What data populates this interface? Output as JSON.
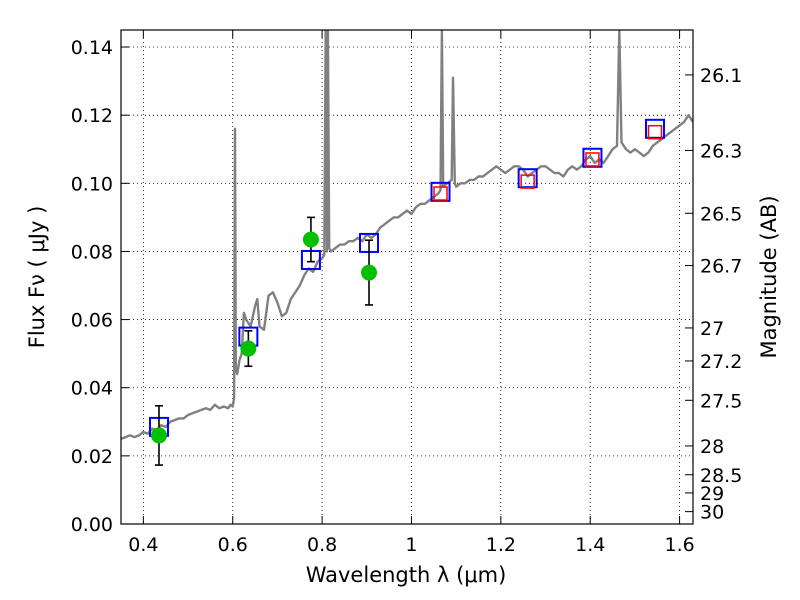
{
  "chart_data": {
    "type": "scatter",
    "xlabel": "Wavelength  λ (μm)",
    "ylabel": "Flux  Fν  ( μJy )",
    "y2label": "Magnitude (AB)",
    "xlim": [
      0.35,
      1.63
    ],
    "ylim": [
      0.0,
      0.145
    ],
    "grid": true,
    "x_ticks": [
      {
        "v": 0.4,
        "label": "0.4"
      },
      {
        "v": 0.6,
        "label": "0.6"
      },
      {
        "v": 0.8,
        "label": "0.8"
      },
      {
        "v": 1.0,
        "label": "1"
      },
      {
        "v": 1.2,
        "label": "1.2"
      },
      {
        "v": 1.4,
        "label": "1.4"
      },
      {
        "v": 1.6,
        "label": "1.6"
      }
    ],
    "y_ticks": [
      {
        "v": 0.0,
        "label": "0.00"
      },
      {
        "v": 0.02,
        "label": "0.02"
      },
      {
        "v": 0.04,
        "label": "0.04"
      },
      {
        "v": 0.06,
        "label": "0.06"
      },
      {
        "v": 0.08,
        "label": "0.08"
      },
      {
        "v": 0.1,
        "label": "0.10"
      },
      {
        "v": 0.12,
        "label": "0.12"
      },
      {
        "v": 0.14,
        "label": "0.14"
      }
    ],
    "mag_ticks": [
      {
        "label": "26.1"
      },
      {
        "label": "26.3"
      },
      {
        "label": "26.5"
      },
      {
        "label": "26.7"
      },
      {
        "label": "27"
      },
      {
        "label": "27.2"
      },
      {
        "label": "27.5"
      },
      {
        "label": "28"
      },
      {
        "label": "28.5"
      },
      {
        "label": "29"
      },
      {
        "label": "30"
      }
    ],
    "series": [
      {
        "kind": "spectrum",
        "color": "#808080",
        "points": [
          [
            0.35,
            0.025
          ],
          [
            0.36,
            0.0255
          ],
          [
            0.37,
            0.026
          ],
          [
            0.38,
            0.0255
          ],
          [
            0.39,
            0.026
          ],
          [
            0.4,
            0.027
          ],
          [
            0.41,
            0.0265
          ],
          [
            0.42,
            0.028
          ],
          [
            0.43,
            0.0275
          ],
          [
            0.44,
            0.029
          ],
          [
            0.45,
            0.0285
          ],
          [
            0.46,
            0.03
          ],
          [
            0.47,
            0.0305
          ],
          [
            0.48,
            0.031
          ],
          [
            0.49,
            0.031
          ],
          [
            0.5,
            0.032
          ],
          [
            0.51,
            0.0325
          ],
          [
            0.52,
            0.033
          ],
          [
            0.53,
            0.0335
          ],
          [
            0.54,
            0.034
          ],
          [
            0.55,
            0.0335
          ],
          [
            0.56,
            0.035
          ],
          [
            0.57,
            0.034
          ],
          [
            0.58,
            0.0345
          ],
          [
            0.59,
            0.034
          ],
          [
            0.595,
            0.035
          ],
          [
            0.6,
            0.0345
          ],
          [
            0.603,
            0.037
          ],
          [
            0.605,
            0.116
          ],
          [
            0.607,
            0.045
          ],
          [
            0.61,
            0.044
          ],
          [
            0.615,
            0.048
          ],
          [
            0.62,
            0.05
          ],
          [
            0.625,
            0.062
          ],
          [
            0.63,
            0.06
          ],
          [
            0.64,
            0.058
          ],
          [
            0.65,
            0.064
          ],
          [
            0.655,
            0.066
          ],
          [
            0.66,
            0.058
          ],
          [
            0.67,
            0.057
          ],
          [
            0.68,
            0.067
          ],
          [
            0.69,
            0.068
          ],
          [
            0.7,
            0.065
          ],
          [
            0.71,
            0.061
          ],
          [
            0.72,
            0.062
          ],
          [
            0.73,
            0.066
          ],
          [
            0.74,
            0.068
          ],
          [
            0.75,
            0.07
          ],
          [
            0.76,
            0.073
          ],
          [
            0.77,
            0.075
          ],
          [
            0.78,
            0.074
          ],
          [
            0.79,
            0.077
          ],
          [
            0.8,
            0.078
          ],
          [
            0.805,
            0.079
          ],
          [
            0.808,
            0.145
          ],
          [
            0.811,
            0.08
          ],
          [
            0.813,
            0.145
          ],
          [
            0.816,
            0.081
          ],
          [
            0.82,
            0.08
          ],
          [
            0.83,
            0.081
          ],
          [
            0.84,
            0.082
          ],
          [
            0.85,
            0.082
          ],
          [
            0.86,
            0.083
          ],
          [
            0.87,
            0.083
          ],
          [
            0.88,
            0.084
          ],
          [
            0.89,
            0.083
          ],
          [
            0.9,
            0.085
          ],
          [
            0.91,
            0.084
          ],
          [
            0.92,
            0.085
          ],
          [
            0.93,
            0.087
          ],
          [
            0.94,
            0.088
          ],
          [
            0.95,
            0.089
          ],
          [
            0.96,
            0.09
          ],
          [
            0.97,
            0.09
          ],
          [
            0.98,
            0.091
          ],
          [
            0.99,
            0.092
          ],
          [
            1.0,
            0.091
          ],
          [
            1.01,
            0.093
          ],
          [
            1.02,
            0.094
          ],
          [
            1.03,
            0.094
          ],
          [
            1.04,
            0.095
          ],
          [
            1.05,
            0.096
          ],
          [
            1.06,
            0.097
          ],
          [
            1.065,
            0.098
          ],
          [
            1.068,
            0.145
          ],
          [
            1.071,
            0.099
          ],
          [
            1.08,
            0.1
          ],
          [
            1.09,
            0.101
          ],
          [
            1.093,
            0.131
          ],
          [
            1.097,
            0.1
          ],
          [
            1.1,
            0.099
          ],
          [
            1.11,
            0.1
          ],
          [
            1.12,
            0.1
          ],
          [
            1.13,
            0.101
          ],
          [
            1.14,
            0.101
          ],
          [
            1.15,
            0.102
          ],
          [
            1.16,
            0.102
          ],
          [
            1.17,
            0.103
          ],
          [
            1.18,
            0.104
          ],
          [
            1.19,
            0.105
          ],
          [
            1.2,
            0.104
          ],
          [
            1.21,
            0.103
          ],
          [
            1.22,
            0.104
          ],
          [
            1.23,
            0.105
          ],
          [
            1.24,
            0.105
          ],
          [
            1.25,
            0.104
          ],
          [
            1.26,
            0.102
          ],
          [
            1.27,
            0.103
          ],
          [
            1.28,
            0.104
          ],
          [
            1.29,
            0.105
          ],
          [
            1.3,
            0.105
          ],
          [
            1.31,
            0.104
          ],
          [
            1.32,
            0.103
          ],
          [
            1.33,
            0.103
          ],
          [
            1.34,
            0.102
          ],
          [
            1.35,
            0.104
          ],
          [
            1.36,
            0.105
          ],
          [
            1.37,
            0.104
          ],
          [
            1.38,
            0.105
          ],
          [
            1.39,
            0.107
          ],
          [
            1.4,
            0.108
          ],
          [
            1.41,
            0.106
          ],
          [
            1.42,
            0.107
          ],
          [
            1.43,
            0.106
          ],
          [
            1.44,
            0.108
          ],
          [
            1.45,
            0.11
          ],
          [
            1.46,
            0.111
          ],
          [
            1.465,
            0.145
          ],
          [
            1.47,
            0.112
          ],
          [
            1.48,
            0.11
          ],
          [
            1.49,
            0.109
          ],
          [
            1.5,
            0.11
          ],
          [
            1.51,
            0.109
          ],
          [
            1.52,
            0.108
          ],
          [
            1.53,
            0.109
          ],
          [
            1.54,
            0.111
          ],
          [
            1.55,
            0.112
          ],
          [
            1.56,
            0.113
          ],
          [
            1.57,
            0.114
          ],
          [
            1.58,
            0.115
          ],
          [
            1.59,
            0.116
          ],
          [
            1.6,
            0.117
          ],
          [
            1.61,
            0.118
          ],
          [
            1.62,
            0.12
          ],
          [
            1.63,
            0.118
          ]
        ]
      },
      {
        "kind": "model-photometry",
        "marker": "square",
        "color": "#0000ff",
        "points": [
          [
            0.435,
            0.0285
          ],
          [
            0.635,
            0.055
          ],
          [
            0.775,
            0.0775
          ],
          [
            0.905,
            0.0825
          ],
          [
            1.065,
            0.0975
          ],
          [
            1.26,
            0.1015
          ],
          [
            1.405,
            0.1075
          ],
          [
            1.545,
            0.116
          ]
        ]
      },
      {
        "kind": "observed-photometry-ir",
        "marker": "square",
        "color": "#ff0000",
        "points": [
          [
            1.065,
            0.097
          ],
          [
            1.26,
            0.1005
          ],
          [
            1.405,
            0.107
          ],
          [
            1.545,
            0.115
          ]
        ]
      },
      {
        "kind": "observed-photometry",
        "marker": "circle",
        "color": "#00c000",
        "points": [
          [
            0.435,
            0.026,
            0.0087
          ],
          [
            0.635,
            0.0515,
            0.0052
          ],
          [
            0.775,
            0.0835,
            0.0065
          ],
          [
            0.905,
            0.0738,
            0.0095
          ]
        ]
      }
    ]
  }
}
